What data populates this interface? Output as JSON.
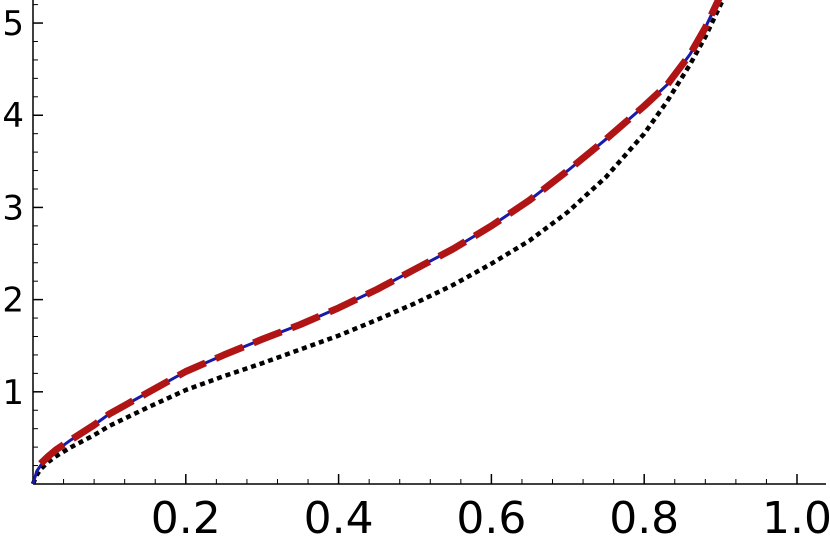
{
  "chart_data": {
    "type": "line",
    "title": "",
    "xlabel": "",
    "ylabel": "",
    "xlim": [
      0,
      1.0
    ],
    "ylim": [
      0,
      5.25
    ],
    "grid": false,
    "legend": "none",
    "x_ticks": [
      {
        "value": 0.2,
        "label": "0.2"
      },
      {
        "value": 0.4,
        "label": "0.4"
      },
      {
        "value": 0.6,
        "label": "0.6"
      },
      {
        "value": 0.8,
        "label": "0.8"
      },
      {
        "value": 1.0,
        "label": "1.0"
      }
    ],
    "y_ticks": [
      {
        "value": 1,
        "label": "1"
      },
      {
        "value": 2,
        "label": "2"
      },
      {
        "value": 3,
        "label": "3"
      },
      {
        "value": 4,
        "label": "4"
      },
      {
        "value": 5,
        "label": "5"
      }
    ],
    "series": [
      {
        "style": "solid",
        "color": "#1a1aa6",
        "x": [
          0,
          0.005,
          0.01,
          0.02,
          0.03,
          0.05,
          0.08,
          0.1,
          0.15,
          0.2,
          0.25,
          0.3,
          0.35,
          0.4,
          0.45,
          0.5,
          0.55,
          0.6,
          0.65,
          0.7,
          0.75,
          0.8,
          0.83,
          0.86,
          0.88,
          0.9,
          0.912
        ],
        "y": [
          0,
          0.14,
          0.2,
          0.3,
          0.36,
          0.48,
          0.64,
          0.76,
          0.99,
          1.22,
          1.4,
          1.57,
          1.73,
          1.91,
          2.11,
          2.33,
          2.55,
          2.8,
          3.08,
          3.4,
          3.74,
          4.1,
          4.33,
          4.66,
          4.95,
          5.3,
          5.45
        ]
      },
      {
        "style": "dashed",
        "color": "#b01414",
        "x": [
          0.01,
          0.02,
          0.03,
          0.05,
          0.08,
          0.1,
          0.15,
          0.2,
          0.25,
          0.3,
          0.35,
          0.4,
          0.45,
          0.5,
          0.55,
          0.6,
          0.65,
          0.7,
          0.75,
          0.8,
          0.83,
          0.86,
          0.88,
          0.9,
          0.912
        ],
        "y": [
          0.22,
          0.3,
          0.37,
          0.48,
          0.64,
          0.76,
          0.99,
          1.22,
          1.4,
          1.57,
          1.73,
          1.91,
          2.11,
          2.33,
          2.55,
          2.8,
          3.08,
          3.4,
          3.74,
          4.1,
          4.33,
          4.66,
          4.95,
          5.3,
          5.45
        ]
      },
      {
        "style": "dotted",
        "color": "#000000",
        "x": [
          0,
          0.005,
          0.01,
          0.02,
          0.03,
          0.05,
          0.08,
          0.1,
          0.15,
          0.2,
          0.25,
          0.3,
          0.35,
          0.4,
          0.45,
          0.5,
          0.55,
          0.6,
          0.65,
          0.7,
          0.75,
          0.8,
          0.83,
          0.86,
          0.88,
          0.9,
          0.912
        ],
        "y": [
          0,
          0.1,
          0.16,
          0.24,
          0.3,
          0.4,
          0.53,
          0.63,
          0.83,
          1.02,
          1.17,
          1.31,
          1.46,
          1.61,
          1.78,
          1.96,
          2.16,
          2.39,
          2.64,
          2.95,
          3.33,
          3.8,
          4.15,
          4.55,
          4.85,
          5.2,
          5.4
        ]
      }
    ]
  }
}
